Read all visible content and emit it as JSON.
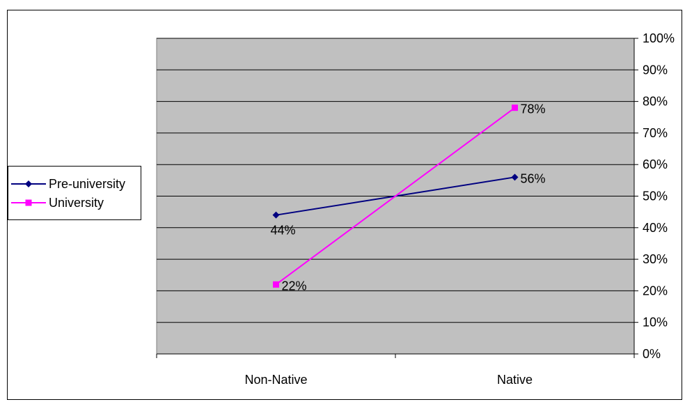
{
  "chart_data": {
    "type": "line",
    "categories": [
      "Non-Native",
      "Native"
    ],
    "series": [
      {
        "name": "Pre-university",
        "values": [
          44,
          56
        ],
        "labels": [
          "44%",
          "56%"
        ],
        "color": "#000080",
        "marker": "diamond"
      },
      {
        "name": "University",
        "values": [
          22,
          78
        ],
        "labels": [
          "22%",
          "78%"
        ],
        "color": "#FF00FF",
        "marker": "square"
      }
    ],
    "yaxis": {
      "position": "right",
      "ylim": [
        0,
        100
      ],
      "ticks": [
        "0%",
        "10%",
        "20%",
        "30%",
        "40%",
        "50%",
        "60%",
        "70%",
        "80%",
        "90%",
        "100%"
      ]
    },
    "grid": true,
    "plot_background": "#C0C0C0",
    "legend": {
      "placement": "left"
    }
  }
}
